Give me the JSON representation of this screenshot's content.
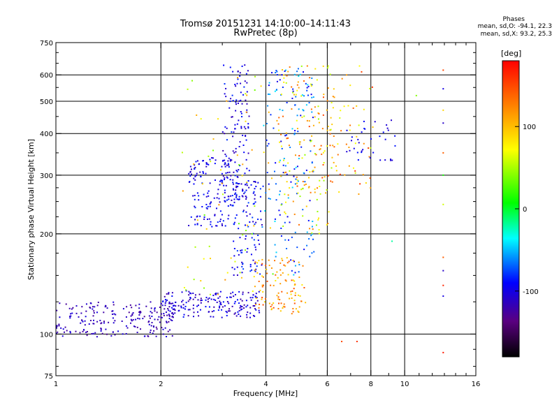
{
  "header": {
    "title": "Tromsø 20151231 14:10:00–14:11:43",
    "subtitle": "RwPretec (8p)"
  },
  "stats": {
    "title": "Phases",
    "o_line": "mean, sd,O: -94.1, 22.3",
    "x_line": "mean, sd,X:  93.2, 25.3"
  },
  "colorbar": {
    "unit_label": "[deg]",
    "ticks": [
      "100",
      "0",
      "-100"
    ],
    "range": [
      -180,
      180
    ]
  },
  "chart_data": {
    "type": "scatter",
    "xlabel": "Frequency [MHz]",
    "ylabel": "Stationary phase Virtual Height [km]",
    "x_scale": "log",
    "y_scale": "log",
    "xlim": [
      1,
      16
    ],
    "ylim": [
      75,
      750
    ],
    "x_ticks": [
      1,
      2,
      4,
      6,
      8,
      10,
      16
    ],
    "x_tick_labels": [
      "1",
      "2",
      "4",
      "6",
      "8",
      "10",
      "16"
    ],
    "y_ticks": [
      75,
      100,
      200,
      300,
      400,
      500,
      600,
      750
    ],
    "y_tick_labels": [
      "75",
      "100",
      "200",
      "300",
      "400",
      "500",
      "600",
      "750"
    ],
    "major_grid_x": [
      2,
      4,
      6,
      8,
      10
    ],
    "major_grid_y": [
      100,
      200,
      300,
      400,
      500,
      600
    ],
    "grid": true,
    "color_variable": "phase [deg]",
    "series": [
      {
        "clusters": [
          {
            "x": [
              1.0,
              2.2
            ],
            "y": [
              98,
              125
            ],
            "phase": [
              -130,
              -100
            ],
            "n": 210
          },
          {
            "x": [
              2.0,
              3.9
            ],
            "y": [
              112,
              135
            ],
            "phase": [
              -125,
              -85
            ],
            "n": 190
          },
          {
            "x": [
              2.4,
              3.3
            ],
            "y": [
              210,
              340
            ],
            "phase": [
              -115,
              -80
            ],
            "n": 150
          },
          {
            "x": [
              3.0,
              3.6
            ],
            "y": [
              250,
              650
            ],
            "phase": [
              -120,
              -80
            ],
            "n": 130
          },
          {
            "x": [
              3.2,
              3.9
            ],
            "y": [
              150,
              290
            ],
            "phase": [
              -115,
              -75
            ],
            "n": 110
          },
          {
            "x": [
              3.9,
              5.5
            ],
            "y": [
              150,
              640
            ],
            "phase": [
              -100,
              -40
            ],
            "n": 160
          },
          {
            "x": [
              3.7,
              5.2
            ],
            "y": [
              115,
              170
            ],
            "phase": [
              80,
              150
            ],
            "n": 110
          },
          {
            "x": [
              4.3,
              6.3
            ],
            "y": [
              200,
              640
            ],
            "phase": [
              40,
              140
            ],
            "n": 130
          },
          {
            "x": [
              4.8,
              8.2
            ],
            "y": [
              260,
              640
            ],
            "phase": [
              50,
              160
            ],
            "n": 90
          },
          {
            "x": [
              2.3,
              4.2
            ],
            "y": [
              130,
              600
            ],
            "phase": [
              30,
              120
            ],
            "n": 70
          },
          {
            "x": [
              6.8,
              9.4
            ],
            "y": [
              330,
              450
            ],
            "phase": [
              -110,
              -85
            ],
            "n": 35
          }
        ]
      }
    ],
    "isolated_points": [
      {
        "x": 12.9,
        "y": 620,
        "phase": 150
      },
      {
        "x": 12.9,
        "y": 545,
        "phase": -100
      },
      {
        "x": 12.9,
        "y": 470,
        "phase": 90
      },
      {
        "x": 12.9,
        "y": 430,
        "phase": -110
      },
      {
        "x": 12.9,
        "y": 350,
        "phase": 140
      },
      {
        "x": 12.9,
        "y": 300,
        "phase": 10
      },
      {
        "x": 12.9,
        "y": 245,
        "phase": 60
      },
      {
        "x": 12.9,
        "y": 170,
        "phase": 140
      },
      {
        "x": 12.9,
        "y": 155,
        "phase": -110
      },
      {
        "x": 12.9,
        "y": 140,
        "phase": 165
      },
      {
        "x": 12.9,
        "y": 130,
        "phase": -100
      },
      {
        "x": 12.9,
        "y": 88,
        "phase": 170
      },
      {
        "x": 10.8,
        "y": 520,
        "phase": 40
      },
      {
        "x": 9.2,
        "y": 190,
        "phase": -20
      },
      {
        "x": 6.6,
        "y": 95,
        "phase": 150
      },
      {
        "x": 7.3,
        "y": 95,
        "phase": 160
      }
    ]
  }
}
